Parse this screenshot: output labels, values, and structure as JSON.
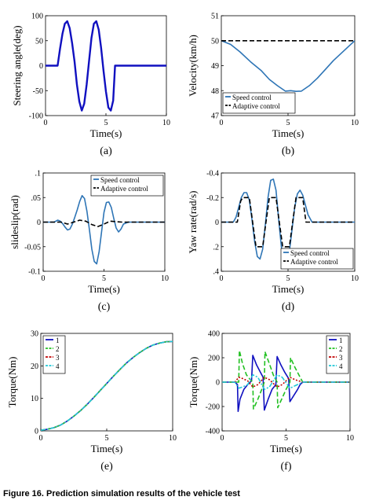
{
  "caption": "Figure 16. Prediction simulation results of the vehicle test",
  "colors": {
    "blue": "#1010c0",
    "lightblue": "#2e75b6",
    "black": "#000000",
    "green": "#22c022",
    "red": "#c00000",
    "cyan": "#22c8d8"
  },
  "chart_data": [
    {
      "id": "a",
      "type": "line",
      "panel_label": "(a)",
      "xlabel": "Time(s)",
      "ylabel": "Steering angle(deg)",
      "xlim": [
        0,
        10
      ],
      "ylim": [
        -100,
        100
      ],
      "xticks": [
        0,
        5,
        10
      ],
      "yticks": [
        -100,
        -50,
        0,
        50,
        100
      ],
      "grid": false,
      "legend": null,
      "series": [
        {
          "color": "#1010c0",
          "x": [
            0,
            0.75,
            1,
            1.2,
            1.4,
            1.6,
            1.8,
            2.0,
            2.2,
            2.4,
            2.6,
            2.8,
            3.0,
            3.2,
            3.4,
            3.6,
            3.8,
            4.0,
            4.2,
            4.4,
            4.6,
            4.8,
            5.0,
            5.2,
            5.4,
            5.6,
            5.75,
            6,
            10
          ],
          "y": [
            0,
            0,
            0,
            34,
            64,
            84,
            89,
            75,
            45,
            8,
            -38,
            -72,
            -90,
            -76,
            -38,
            8,
            55,
            84,
            89,
            72,
            36,
            -10,
            -52,
            -84,
            -90,
            -70,
            0,
            0,
            0
          ]
        }
      ]
    },
    {
      "id": "b",
      "type": "line",
      "panel_label": "(b)",
      "xlabel": "Time(s)",
      "ylabel": "Velocity(km/h)",
      "xlim": [
        0,
        10
      ],
      "ylim": [
        47,
        51
      ],
      "xticks": [
        0,
        5,
        10
      ],
      "yticks": [
        47,
        48,
        49,
        50,
        51
      ],
      "grid": false,
      "legend": "bottom-left",
      "series": [
        {
          "name": "Speed control",
          "color": "#2e75b6",
          "dash": "solid",
          "x": [
            0,
            0.7,
            1.4,
            2.2,
            3.0,
            3.6,
            4.2,
            4.8,
            5.2,
            5.6,
            6.0,
            6.6,
            7.2,
            7.8,
            8.4,
            9.0,
            9.6,
            10
          ],
          "y": [
            50,
            49.85,
            49.55,
            49.15,
            48.8,
            48.45,
            48.2,
            47.98,
            48.0,
            47.97,
            47.98,
            48.2,
            48.5,
            48.85,
            49.2,
            49.5,
            49.8,
            50
          ]
        },
        {
          "name": "Adaptive control",
          "color": "#000000",
          "dash": "dashed",
          "x": [
            0,
            10
          ],
          "y": [
            50,
            50
          ]
        }
      ]
    },
    {
      "id": "c",
      "type": "line",
      "panel_label": "(c)",
      "xlabel": "Time(s)",
      "ylabel": "slideslip(rad)",
      "xlim": [
        0,
        10
      ],
      "ylim": [
        -0.1,
        0.1
      ],
      "xticks": [
        0,
        5,
        10
      ],
      "yticks": [
        -0.1,
        -0.05,
        0,
        0.05,
        0.1
      ],
      "grid": false,
      "legend": "top-right",
      "series": [
        {
          "name": "Speed control",
          "color": "#2e75b6",
          "dash": "solid",
          "x": [
            0,
            0.9,
            1.2,
            1.4,
            1.6,
            1.8,
            2.0,
            2.2,
            2.4,
            2.6,
            2.8,
            3.0,
            3.2,
            3.4,
            3.6,
            3.8,
            4.0,
            4.2,
            4.4,
            4.6,
            4.8,
            5.0,
            5.2,
            5.4,
            5.6,
            5.8,
            6.0,
            6.2,
            6.4,
            6.6,
            7,
            10
          ],
          "y": [
            0,
            0,
            0.004,
            0.002,
            -0.003,
            -0.01,
            -0.016,
            -0.014,
            -0.004,
            0.01,
            0.025,
            0.042,
            0.054,
            0.048,
            0.022,
            -0.015,
            -0.055,
            -0.08,
            -0.085,
            -0.06,
            -0.02,
            0.02,
            0.04,
            0.041,
            0.03,
            0.008,
            -0.012,
            -0.02,
            -0.014,
            -0.004,
            0,
            0
          ]
        },
        {
          "name": "Adaptive control",
          "color": "#000000",
          "dash": "dashed",
          "x": [
            0,
            1.5,
            2.0,
            2.5,
            3.0,
            3.5,
            4.0,
            4.5,
            5.0,
            5.5,
            6.0,
            6.5,
            10
          ],
          "y": [
            0,
            0,
            -0.004,
            0,
            0.004,
            0.002,
            -0.005,
            -0.009,
            -0.004,
            0.002,
            0.001,
            0,
            0
          ]
        }
      ]
    },
    {
      "id": "d",
      "type": "line",
      "panel_label": "(d)",
      "xlabel": "Time(s)",
      "ylabel": "Yaw rate(rad/s)",
      "xlim": [
        0,
        10
      ],
      "ylim": [
        0.4,
        -0.4
      ],
      "y_reversed": true,
      "xticks": [
        0,
        5,
        10
      ],
      "yticks": [
        -0.4,
        -0.2,
        0,
        0.2,
        0.4
      ],
      "grid": false,
      "legend": "bottom-right",
      "series": [
        {
          "name": "Speed control",
          "color": "#2e75b6",
          "dash": "solid",
          "x": [
            0,
            0.9,
            1.1,
            1.3,
            1.5,
            1.7,
            1.9,
            2.1,
            2.3,
            2.5,
            2.7,
            2.9,
            3.1,
            3.3,
            3.5,
            3.7,
            3.9,
            4.1,
            4.3,
            4.5,
            4.7,
            4.9,
            5.1,
            5.3,
            5.5,
            5.7,
            5.9,
            6.1,
            6.3,
            6.5,
            6.8,
            10
          ],
          "y": [
            0,
            0,
            -0.04,
            -0.12,
            -0.2,
            -0.24,
            -0.24,
            -0.18,
            -0.02,
            0.16,
            0.28,
            0.3,
            0.22,
            0.02,
            -0.2,
            -0.34,
            -0.35,
            -0.26,
            -0.02,
            0.2,
            0.3,
            0.3,
            0.24,
            0.06,
            -0.12,
            -0.23,
            -0.26,
            -0.22,
            -0.14,
            -0.06,
            0,
            0
          ]
        },
        {
          "name": "Adaptive control",
          "color": "#000000",
          "dash": "dashed",
          "x": [
            0,
            1.2,
            1.45,
            1.6,
            2.1,
            2.35,
            2.6,
            3.1,
            3.35,
            3.6,
            4.1,
            4.35,
            4.6,
            5.1,
            5.35,
            5.6,
            6.1,
            6.35,
            10
          ],
          "y": [
            0,
            0,
            -0.17,
            -0.2,
            -0.2,
            0,
            0.2,
            0.2,
            0,
            -0.2,
            -0.2,
            0,
            0.2,
            0.2,
            0,
            -0.2,
            -0.2,
            0,
            0
          ]
        }
      ]
    },
    {
      "id": "e",
      "type": "line",
      "panel_label": "(e)",
      "xlabel": "Time(s)",
      "ylabel": "Torque(Nm)",
      "xlim": [
        0,
        10
      ],
      "ylim": [
        0,
        30
      ],
      "xticks": [
        0,
        5,
        10
      ],
      "yticks": [
        0,
        10,
        20,
        30
      ],
      "grid": false,
      "legend": "top-left",
      "series": [
        {
          "name": "1",
          "color": "#1010c0",
          "dash": "solid"
        },
        {
          "name": "2",
          "color": "#22c022",
          "dash": "dashed"
        },
        {
          "name": "3",
          "color": "#c00000",
          "dash": "dotted"
        },
        {
          "name": "4",
          "color": "#22c8d8",
          "dash": "dashdot"
        }
      ],
      "shared_curve": {
        "x": [
          0,
          0.5,
          1,
          1.5,
          2,
          2.5,
          3,
          3.5,
          4,
          4.5,
          5,
          5.5,
          6,
          6.5,
          7,
          7.5,
          8,
          8.5,
          9,
          9.5,
          10
        ],
        "y": [
          0.2,
          0.5,
          1.0,
          1.8,
          3.0,
          4.5,
          6.2,
          8.1,
          10.2,
          12.4,
          14.6,
          16.8,
          18.9,
          20.9,
          22.6,
          24.1,
          25.4,
          26.4,
          27.0,
          27.4,
          27.5
        ]
      }
    },
    {
      "id": "f",
      "type": "line",
      "panel_label": "(f)",
      "xlabel": "Time(s)",
      "ylabel": "Torque(Nm)",
      "xlim": [
        0,
        10
      ],
      "ylim": [
        -400,
        400
      ],
      "xticks": [
        0,
        5,
        10
      ],
      "yticks": [
        -400,
        -200,
        0,
        200,
        400
      ],
      "grid": false,
      "legend": "top-right",
      "series": [
        {
          "name": "1",
          "color": "#1010c0",
          "dash": "solid",
          "x": [
            0,
            1.0,
            1.2,
            1.25,
            1.4,
            1.7,
            2.0,
            2.3,
            2.4,
            2.7,
            3.0,
            3.2,
            3.3,
            3.6,
            3.9,
            4.2,
            4.3,
            4.6,
            4.9,
            5.2,
            5.3,
            5.6,
            5.9,
            6.1,
            6.3,
            10
          ],
          "y": [
            0,
            0,
            -20,
            -240,
            -140,
            -60,
            -20,
            10,
            220,
            140,
            80,
            40,
            -230,
            -140,
            -60,
            -20,
            210,
            140,
            80,
            30,
            -160,
            -110,
            -60,
            -20,
            0,
            0
          ]
        },
        {
          "name": "2",
          "color": "#22c022",
          "dash": "dashed",
          "x": [
            0,
            1.0,
            1.3,
            1.35,
            1.6,
            1.9,
            2.2,
            2.4,
            2.45,
            2.8,
            3.1,
            3.3,
            3.35,
            3.7,
            4.0,
            4.3,
            4.35,
            4.7,
            5.0,
            5.3,
            5.35,
            5.7,
            6.0,
            6.3,
            10
          ],
          "y": [
            0,
            0,
            0,
            260,
            150,
            60,
            20,
            0,
            -220,
            -140,
            -60,
            0,
            250,
            150,
            60,
            0,
            -210,
            -130,
            -60,
            0,
            200,
            120,
            60,
            0,
            0
          ]
        },
        {
          "name": "3",
          "color": "#c00000",
          "dash": "dotted",
          "x": [
            0,
            1.0,
            1.3,
            1.6,
            2.0,
            2.4,
            2.8,
            3.3,
            3.7,
            4.3,
            4.7,
            5.3,
            5.7,
            6.3,
            10
          ],
          "y": [
            0,
            0,
            40,
            30,
            10,
            -40,
            -20,
            40,
            20,
            -40,
            -20,
            40,
            20,
            0,
            0
          ]
        },
        {
          "name": "4",
          "color": "#22c8d8",
          "dash": "dashdot",
          "x": [
            0,
            1.0,
            1.3,
            1.6,
            2.0,
            2.4,
            2.8,
            3.3,
            3.7,
            4.3,
            4.7,
            5.3,
            5.7,
            6.3,
            10
          ],
          "y": [
            0,
            0,
            -50,
            -40,
            -20,
            60,
            40,
            -60,
            -40,
            60,
            40,
            -50,
            -30,
            0,
            0
          ]
        }
      ]
    }
  ]
}
